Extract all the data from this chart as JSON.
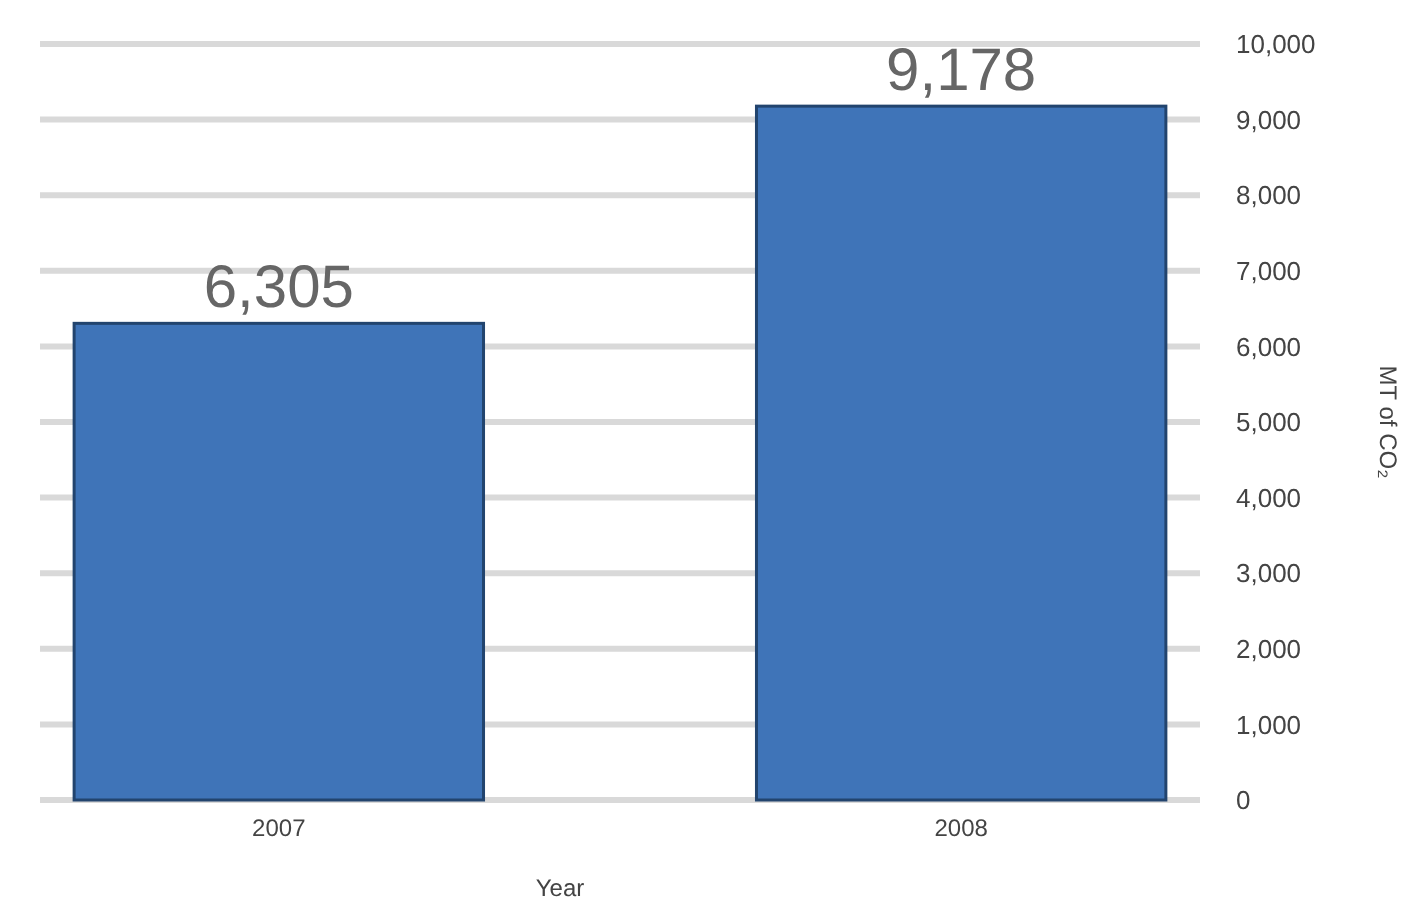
{
  "chart_data": {
    "type": "bar",
    "xlabel": "Year",
    "ylabel": "MT of CO₂",
    "categories": [
      "2007",
      "2008"
    ],
    "values": [
      6305,
      9178
    ],
    "color": "#3f74b8",
    "ylim": [
      0,
      10000
    ],
    "yticks": [
      0,
      {
        "value": 1000,
        "label": "1,000"
      },
      {
        "value": 2000,
        "label": "2,000"
      },
      {
        "value": 3000,
        "label": "3,000"
      },
      {
        "value": 4000,
        "label": "4,000"
      },
      {
        "value": 5000,
        "label": "5,000"
      },
      {
        "value": 6000,
        "label": "6,000"
      },
      {
        "value": 7000,
        "label": "7,000"
      },
      {
        "value": 8000,
        "label": "8,000"
      },
      {
        "value": 9000,
        "label": "9,000"
      },
      {
        "value": 10000,
        "label": "10,000"
      }
    ],
    "grid": "y",
    "value_labels": [
      "6,305",
      "9,178"
    ]
  }
}
